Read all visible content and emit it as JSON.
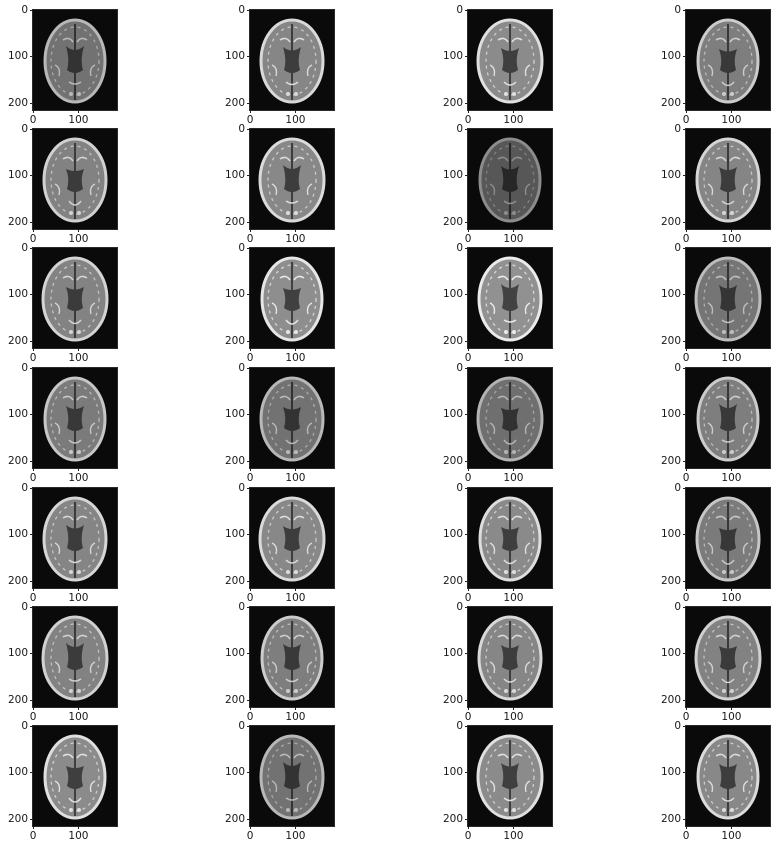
{
  "figure": {
    "rows": 7,
    "cols": 4,
    "y_tick_labels": [
      "0",
      "100",
      "200"
    ],
    "x_tick_labels": [
      "0",
      "100"
    ],
    "background_color": "#ffffff",
    "image_background": "#0a0a0a",
    "colormap": "gray"
  },
  "panels": [
    {
      "brightness": 0.72
    },
    {
      "brightness": 0.85
    },
    {
      "brightness": 0.88
    },
    {
      "brightness": 0.8
    },
    {
      "brightness": 0.82
    },
    {
      "brightness": 0.86
    },
    {
      "brightness": 0.55
    },
    {
      "brightness": 0.84
    },
    {
      "brightness": 0.83
    },
    {
      "brightness": 0.9
    },
    {
      "brightness": 0.92
    },
    {
      "brightness": 0.74
    },
    {
      "brightness": 0.78
    },
    {
      "brightness": 0.72
    },
    {
      "brightness": 0.7
    },
    {
      "brightness": 0.8
    },
    {
      "brightness": 0.84
    },
    {
      "brightness": 0.86
    },
    {
      "brightness": 0.87
    },
    {
      "brightness": 0.78
    },
    {
      "brightness": 0.82
    },
    {
      "brightness": 0.8
    },
    {
      "brightness": 0.85
    },
    {
      "brightness": 0.82
    },
    {
      "brightness": 0.88
    },
    {
      "brightness": 0.72
    },
    {
      "brightness": 0.88
    },
    {
      "brightness": 0.86
    }
  ]
}
